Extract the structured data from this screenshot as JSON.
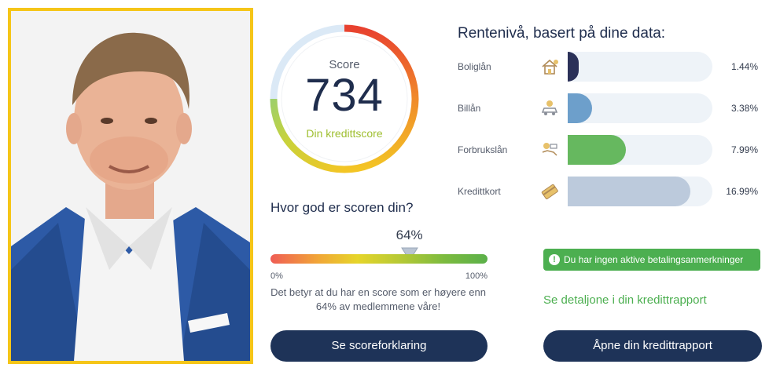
{
  "score": {
    "label": "Score",
    "value": "734",
    "subtitle": "Din kredittscore"
  },
  "percentile": {
    "question": "Hvor god er scoren din?",
    "value": 64,
    "value_label": "64%",
    "min_label": "0%",
    "max_label": "100%",
    "explanation": "Det betyr at du har en score som er høyere enn 64% av medlemmene våre!"
  },
  "buttons": {
    "score_explanation": "Se scoreforklaring",
    "open_report": "Åpne din kredittrapport"
  },
  "rates": {
    "title": "Rentenivå, basert på dine data:",
    "items": [
      {
        "name": "Boliglån",
        "icon": "house-icon",
        "value": 1.44,
        "value_label": "1.44%",
        "color": "#2b3158"
      },
      {
        "name": "Billån",
        "icon": "car-icon",
        "value": 3.38,
        "value_label": "3.38%",
        "color": "#6d9fcb"
      },
      {
        "name": "Forbrukslån",
        "icon": "money-hand-icon",
        "value": 7.99,
        "value_label": "7.99%",
        "color": "#66b85f"
      },
      {
        "name": "Kredittkort",
        "icon": "credit-card-icon",
        "value": 16.99,
        "value_label": "16.99%",
        "color": "#bccadc"
      }
    ]
  },
  "status": {
    "no_remarks": "Du har ingen aktive betalingsanmerkninger",
    "icon": "info-icon"
  },
  "links": {
    "report_details": "Se detaljone i din kredittrapport"
  },
  "colors": {
    "primary": "#1e3358",
    "success": "#4caf50",
    "photo_frame": "#f5c518"
  }
}
